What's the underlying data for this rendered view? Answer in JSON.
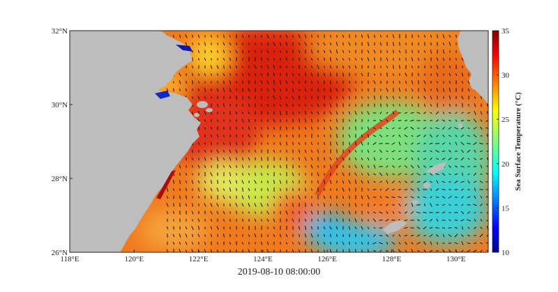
{
  "map": {
    "lon_ticks": [
      "118°E",
      "120°E",
      "122°E",
      "124°E",
      "126°E",
      "128°E",
      "130°E"
    ],
    "lat_ticks": [
      "26°N",
      "28°N",
      "30°N",
      "32°N"
    ],
    "lon_values": [
      118,
      120,
      122,
      124,
      126,
      128,
      130
    ],
    "lat_values": [
      26,
      28,
      30,
      32
    ],
    "extent": {
      "lon": [
        118,
        131
      ],
      "lat": [
        26,
        32
      ]
    },
    "land_color": "#bdbdbd",
    "field": "sea surface temperature with current vectors"
  },
  "colorbar": {
    "title": "Sea Surface Temperature (°C)",
    "ticks": [
      "35",
      "30",
      "25",
      "20",
      "15",
      "10"
    ],
    "tick_values": [
      35,
      30,
      25,
      20,
      15,
      10
    ],
    "range": [
      10,
      35
    ],
    "colormap": "jet"
  },
  "timestamp": "2019-08-10 08:00:00"
}
